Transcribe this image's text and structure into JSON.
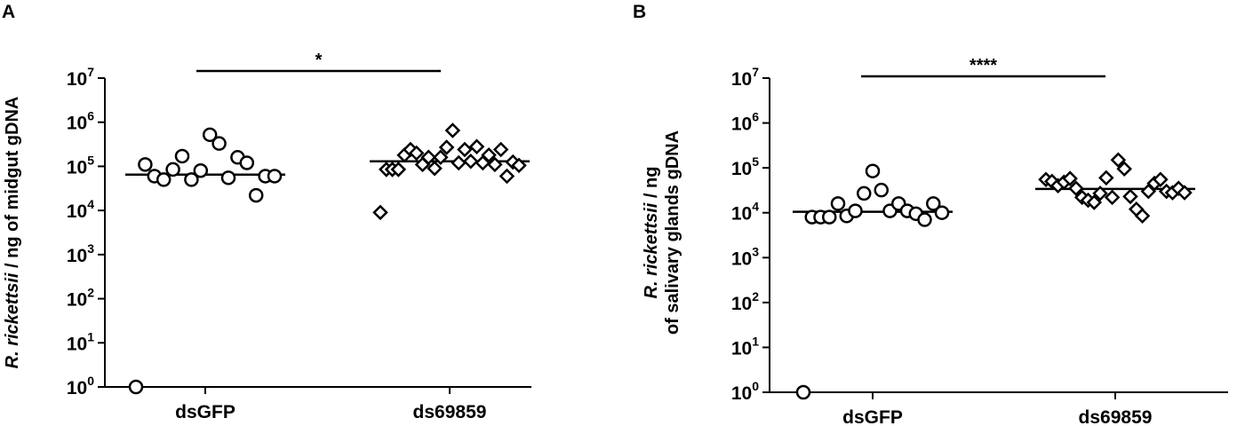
{
  "chart_data": [
    {
      "panel": "A",
      "type": "scatter",
      "y_scale": "log",
      "ylim": [
        1,
        10000000
      ],
      "yticks": [
        1,
        10,
        100,
        1000,
        10000,
        100000,
        1000000,
        10000000
      ],
      "ytick_base": "10",
      "ytick_exponents": [
        "0",
        "1",
        "2",
        "3",
        "4",
        "5",
        "6",
        "7"
      ],
      "ylabel_italic": "R. rickettsii",
      "ylabel_rest": " / ng of midgut gDNA",
      "categories": [
        "dsGFP",
        "ds69859"
      ],
      "significance": "*",
      "series": [
        {
          "marker": "circle",
          "median": 65000,
          "values": [
            1,
            110000,
            60000,
            50000,
            85000,
            170000,
            50000,
            80000,
            520000,
            330000,
            55000,
            160000,
            120000,
            22000,
            60000,
            60000
          ]
        },
        {
          "marker": "diamond",
          "median": 130000,
          "values": [
            9000,
            85000,
            85000,
            85000,
            180000,
            240000,
            200000,
            110000,
            160000,
            90000,
            160000,
            270000,
            650000,
            120000,
            240000,
            130000,
            280000,
            120000,
            180000,
            110000,
            240000,
            60000,
            125000,
            105000
          ]
        }
      ]
    },
    {
      "panel": "B",
      "type": "scatter",
      "y_scale": "log",
      "ylim": [
        1,
        10000000
      ],
      "yticks": [
        1,
        10,
        100,
        1000,
        10000,
        100000,
        1000000,
        10000000
      ],
      "ytick_base": "10",
      "ytick_exponents": [
        "0",
        "1",
        "2",
        "3",
        "4",
        "5",
        "6",
        "7"
      ],
      "ylabel_italic": "R. rickettsii",
      "ylabel_line1_rest": " / ng",
      "ylabel_line2": "of salivary glands gDNA",
      "categories": [
        "dsGFP",
        "ds69859"
      ],
      "significance": "****",
      "series": [
        {
          "marker": "circle",
          "median": 10500,
          "values": [
            1,
            8000,
            8000,
            8000,
            16000,
            8500,
            11000,
            27000,
            85000,
            32000,
            11000,
            16000,
            11000,
            9500,
            7000,
            16000,
            10000
          ]
        },
        {
          "marker": "diamond",
          "median": 34000,
          "values": [
            55000,
            50000,
            40000,
            48000,
            58000,
            35000,
            22000,
            19000,
            17000,
            27000,
            60000,
            22000,
            150000,
            95000,
            23000,
            12000,
            8500,
            30000,
            45000,
            55000,
            30000,
            28000,
            35000,
            28000
          ]
        }
      ]
    }
  ]
}
